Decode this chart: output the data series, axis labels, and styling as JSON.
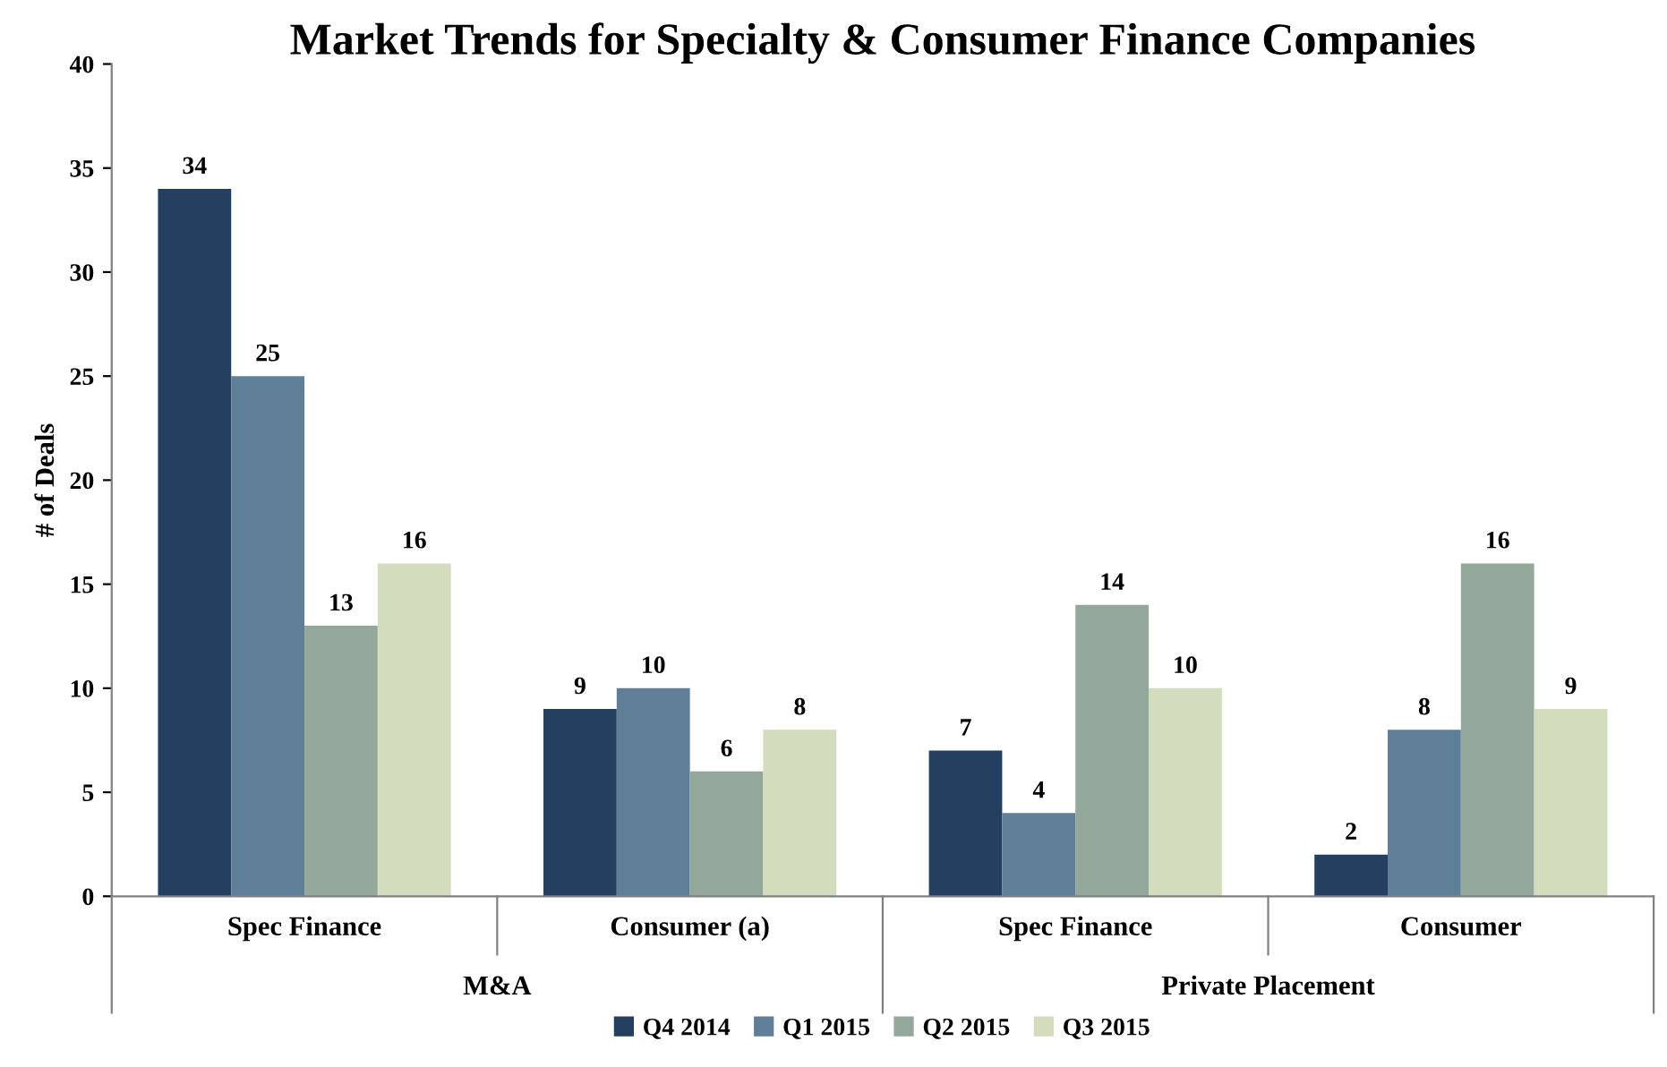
{
  "chart_data": {
    "type": "bar",
    "title": "Market Trends for Specialty & Consumer Finance Companies",
    "ylabel": "# of Deals",
    "categories": [
      "Spec Finance",
      "Consumer (a)",
      "Spec Finance",
      "Consumer"
    ],
    "annotations": [
      "M&A",
      "Private Placement"
    ],
    "series": [
      {
        "name": "Q4 2014",
        "color": "#243f60",
        "values": [
          34,
          9,
          7,
          2
        ]
      },
      {
        "name": "Q1 2015",
        "color": "#5f7f99",
        "values": [
          25,
          10,
          4,
          8
        ]
      },
      {
        "name": "Q2 2015",
        "color": "#93a89a",
        "values": [
          13,
          6,
          14,
          16
        ]
      },
      {
        "name": "Q3 2015",
        "color": "#d3dcbc",
        "values": [
          16,
          8,
          10,
          9
        ]
      }
    ],
    "ylim": [
      0,
      40
    ],
    "yticks": [
      0,
      5,
      10,
      15,
      20,
      25,
      30,
      35,
      40
    ],
    "data_labels": true,
    "grid": false,
    "legend": "bottom"
  }
}
